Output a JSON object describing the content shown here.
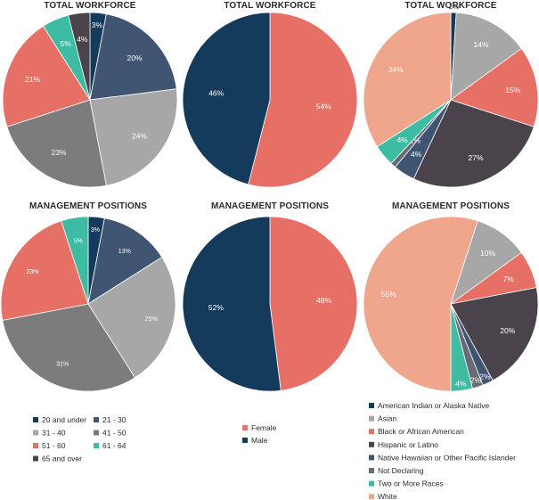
{
  "colors": {
    "navy": "#143a5c",
    "slate": "#3f5572",
    "lightgray": "#a7a7a7",
    "gray": "#7c7c7c",
    "coral": "#e66f66",
    "darkpurple": "#4b434c",
    "teal": "#3dbba3",
    "steel": "#3f5572",
    "salmon": "#f0a58d",
    "notdecl": "#686b73"
  },
  "legends": {
    "age": [
      {
        "label": "20 and under",
        "color": "#143a5c"
      },
      {
        "label": "21 - 30",
        "color": "#3f5572"
      },
      {
        "label": "31 - 40",
        "color": "#a7a7a7"
      },
      {
        "label": "41 - 50",
        "color": "#7c7c7c"
      },
      {
        "label": "51 - 60",
        "color": "#e66f66"
      },
      {
        "label": "61 - 64",
        "color": "#3dbba3"
      },
      {
        "label": "65 and over",
        "color": "#4b434c"
      }
    ],
    "gender": [
      {
        "label": "Female",
        "color": "#e66f66"
      },
      {
        "label": "Male",
        "color": "#143a5c"
      }
    ],
    "race": [
      {
        "label": "American Indian or Alaska Native",
        "color": "#143a5c"
      },
      {
        "label": "Asian",
        "color": "#a7a7a7"
      },
      {
        "label": "Black or African American",
        "color": "#e66f66"
      },
      {
        "label": "Hispanic or Latino",
        "color": "#4b434c"
      },
      {
        "label": "Native Hawaiian or Other Pacific Islander",
        "color": "#3f5572"
      },
      {
        "label": "Not Declaring",
        "color": "#686b73"
      },
      {
        "label": "Two or More Races",
        "color": "#3dbba3"
      },
      {
        "label": "White",
        "color": "#f0a58d"
      }
    ]
  },
  "chart_data": [
    {
      "type": "pie",
      "group": "age",
      "title": "TOTAL WORKFORCE",
      "slices": [
        {
          "name": "20 and under",
          "value": 3,
          "label": "3%",
          "color": "#143a5c"
        },
        {
          "name": "21 - 30",
          "value": 20,
          "label": "20%",
          "color": "#3f5572"
        },
        {
          "name": "31 - 40",
          "value": 24,
          "label": "24%",
          "color": "#a7a7a7"
        },
        {
          "name": "41 - 50",
          "value": 23,
          "label": "23%",
          "color": "#7c7c7c"
        },
        {
          "name": "51 - 60",
          "value": 21,
          "label": "21%",
          "color": "#e66f66"
        },
        {
          "name": "61 - 64",
          "value": 5,
          "label": "5%",
          "color": "#3dbba3"
        },
        {
          "name": "65 and over",
          "value": 4,
          "label": "4%",
          "color": "#4b434c"
        }
      ]
    },
    {
      "type": "pie",
      "group": "gender",
      "title": "TOTAL WORKFORCE",
      "slices": [
        {
          "name": "Female",
          "value": 54,
          "label": "54%",
          "color": "#e66f66"
        },
        {
          "name": "Male",
          "value": 46,
          "label": "46%",
          "color": "#143a5c"
        }
      ]
    },
    {
      "type": "pie",
      "group": "race",
      "title": "TOTAL WORKFORCE",
      "slices": [
        {
          "name": "American Indian or Alaska Native",
          "value": 1,
          "label": "1%",
          "color": "#143a5c"
        },
        {
          "name": "Asian",
          "value": 14,
          "label": "14%",
          "color": "#a7a7a7"
        },
        {
          "name": "Black or African American",
          "value": 15,
          "label": "15%",
          "color": "#e66f66"
        },
        {
          "name": "Hispanic or Latino",
          "value": 27,
          "label": "27%",
          "color": "#4b434c"
        },
        {
          "name": "Native Hawaiian or Other Pacific Islander",
          "value": 4,
          "label": "4%",
          "color": "#3f5572"
        },
        {
          "name": "Not Declaring",
          "value": 1,
          "label": "1%",
          "color": "#686b73"
        },
        {
          "name": "Two or More Races",
          "value": 4,
          "label": "4%",
          "color": "#3dbba3"
        },
        {
          "name": "White",
          "value": 34,
          "label": "34%",
          "color": "#f0a58d"
        }
      ]
    },
    {
      "type": "pie",
      "group": "age",
      "title": "MANAGEMENT POSITIONS",
      "slices": [
        {
          "name": "20 and under",
          "value": 3,
          "label": "3%",
          "color": "#143a5c"
        },
        {
          "name": "21 - 30",
          "value": 13,
          "label": "13%",
          "color": "#3f5572"
        },
        {
          "name": "31 - 40",
          "value": 25,
          "label": "25%",
          "color": "#a7a7a7"
        },
        {
          "name": "41 - 50",
          "value": 31,
          "label": "31%",
          "color": "#7c7c7c"
        },
        {
          "name": "51 - 60",
          "value": 23,
          "label": "23%",
          "color": "#e66f66"
        },
        {
          "name": "61 - 64",
          "value": 5,
          "label": "5%",
          "color": "#3dbba3"
        }
      ]
    },
    {
      "type": "pie",
      "group": "gender",
      "title": "MANAGEMENT POSITIONS",
      "slices": [
        {
          "name": "Female",
          "value": 48,
          "label": "48%",
          "color": "#e66f66"
        },
        {
          "name": "Male",
          "value": 52,
          "label": "52%",
          "color": "#143a5c"
        }
      ]
    },
    {
      "type": "pie",
      "group": "race",
      "title": "MANAGEMENT POSITIONS",
      "slices": [
        {
          "name": "Asian",
          "value": 10,
          "label": "10%",
          "color": "#a7a7a7"
        },
        {
          "name": "Black or African American",
          "value": 7,
          "label": "7%",
          "color": "#e66f66"
        },
        {
          "name": "Hispanic or Latino",
          "value": 20,
          "label": "20%",
          "color": "#4b434c"
        },
        {
          "name": "Native Hawaiian or Other Pacific Islander",
          "value": 2,
          "label": "2%",
          "color": "#3f5572"
        },
        {
          "name": "Not Declaring",
          "value": 2,
          "label": "2%",
          "color": "#686b73"
        },
        {
          "name": "Two or More Races",
          "value": 4,
          "label": "4%",
          "color": "#3dbba3"
        },
        {
          "name": "White",
          "value": 55,
          "label": "55%",
          "color": "#f0a58d"
        }
      ]
    }
  ]
}
